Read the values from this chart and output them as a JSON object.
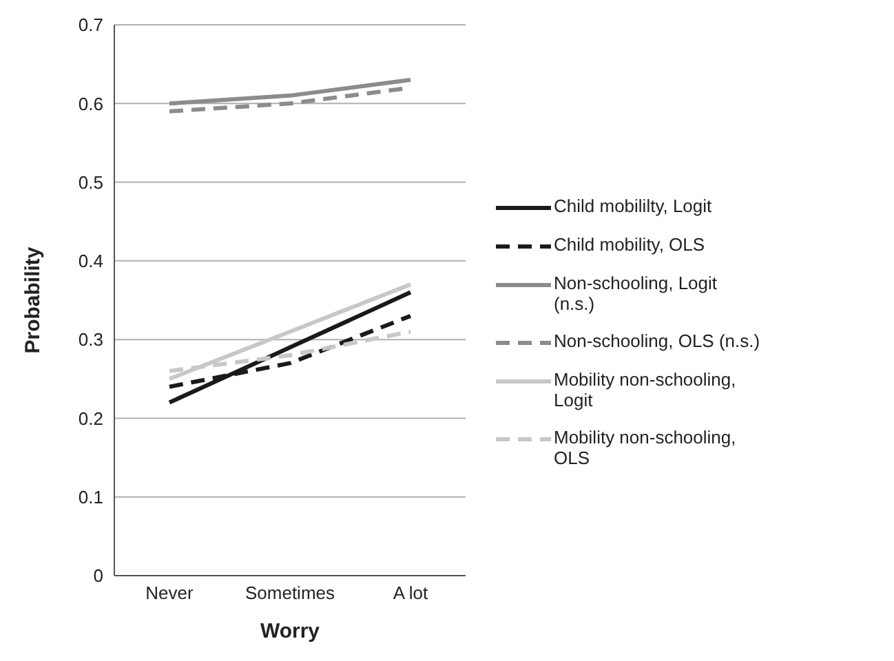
{
  "chart_data": {
    "type": "line",
    "xlabel": "Worry",
    "ylabel": "Probability",
    "categories": [
      "Never",
      "Sometimes",
      "A lot"
    ],
    "series": [
      {
        "name": "Child mobililty, Logit",
        "color": "#1a1a1a",
        "line_style": "solid",
        "values": [
          0.22,
          0.29,
          0.36
        ]
      },
      {
        "name": "Child mobility, OLS",
        "color": "#1a1a1a",
        "line_style": "dashed",
        "values": [
          0.24,
          0.27,
          0.33
        ]
      },
      {
        "name": "Non-schooling, Logit (n.s.)",
        "color": "#8c8c8c",
        "line_style": "solid",
        "values": [
          0.6,
          0.61,
          0.63
        ]
      },
      {
        "name": "Non-schooling, OLS (n.s.)",
        "color": "#8c8c8c",
        "line_style": "dashed",
        "values": [
          0.59,
          0.6,
          0.62
        ]
      },
      {
        "name": "Mobility non-schooling, Logit",
        "color": "#c8c8c8",
        "line_style": "solid",
        "values": [
          0.25,
          0.31,
          0.37
        ]
      },
      {
        "name": "Mobility non-schooling, OLS",
        "color": "#c8c8c8",
        "line_style": "dashed",
        "values": [
          0.26,
          0.28,
          0.31
        ]
      }
    ],
    "ylim": [
      0,
      0.7
    ],
    "yticks": [
      0,
      0.1,
      0.2,
      0.3,
      0.4,
      0.5,
      0.6,
      0.7
    ],
    "grid": "y",
    "legend": "right",
    "marker": "none"
  }
}
